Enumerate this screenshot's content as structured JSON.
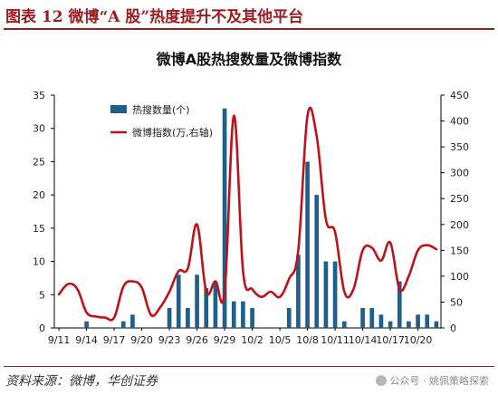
{
  "header": {
    "figure_title": "图表 12   微博“A 股”热度提升不及其他平台"
  },
  "footer": {
    "source": "资料来源：微博，华创证券",
    "watermark": "公众号 · 姚佩策略探索"
  },
  "chart_data": {
    "type": "bar+line",
    "title": "微博A股热搜数量及微博指数",
    "x": [
      "9/11",
      "9/12",
      "9/13",
      "9/14",
      "9/15",
      "9/16",
      "9/17",
      "9/18",
      "9/19",
      "9/20",
      "9/21",
      "9/22",
      "9/23",
      "9/24",
      "9/25",
      "9/26",
      "9/27",
      "9/28",
      "9/29",
      "9/30",
      "10/1",
      "10/2",
      "10/3",
      "10/4",
      "10/5",
      "10/6",
      "10/7",
      "10/8",
      "10/9",
      "10/10",
      "10/11",
      "10/12",
      "10/13",
      "10/14",
      "10/15",
      "10/16",
      "10/17",
      "10/18",
      "10/19",
      "10/20",
      "10/21",
      "10/22"
    ],
    "x_tick_labels": [
      "9/11",
      "9/14",
      "9/17",
      "9/20",
      "9/23",
      "9/26",
      "9/29",
      "10/2",
      "10/5",
      "10/8",
      "10/11",
      "10/14",
      "10/17",
      "10/20"
    ],
    "y_left": {
      "lim": [
        0,
        35
      ],
      "ticks": [
        0,
        5,
        10,
        15,
        20,
        25,
        30,
        35
      ]
    },
    "y_right": {
      "lim": [
        0,
        450
      ],
      "ticks": [
        0,
        50,
        100,
        150,
        200,
        250,
        300,
        350,
        400,
        450
      ]
    },
    "legend": {
      "position": "top-left"
    },
    "series": [
      {
        "name": "热搜数量(个)",
        "type": "bar",
        "axis": "left",
        "color": "#1f5f8b",
        "values": [
          0,
          0,
          0,
          1,
          0,
          0,
          0,
          1,
          2,
          0,
          0,
          0,
          3,
          8,
          3,
          8,
          6,
          7,
          33,
          4,
          4,
          3,
          0,
          0,
          0,
          3,
          11,
          25,
          20,
          10,
          10,
          1,
          0,
          3,
          3,
          2,
          1,
          7,
          1,
          2,
          2,
          1
        ]
      },
      {
        "name": "微博指数(万,右轴)",
        "type": "line",
        "axis": "right",
        "color": "#c0111b",
        "values": [
          65,
          85,
          75,
          30,
          22,
          20,
          20,
          80,
          90,
          78,
          25,
          40,
          70,
          110,
          115,
          200,
          70,
          90,
          70,
          410,
          110,
          75,
          60,
          70,
          60,
          95,
          150,
          410,
          370,
          210,
          185,
          70,
          75,
          150,
          155,
          130,
          165,
          75,
          100,
          150,
          160,
          152
        ]
      }
    ]
  }
}
